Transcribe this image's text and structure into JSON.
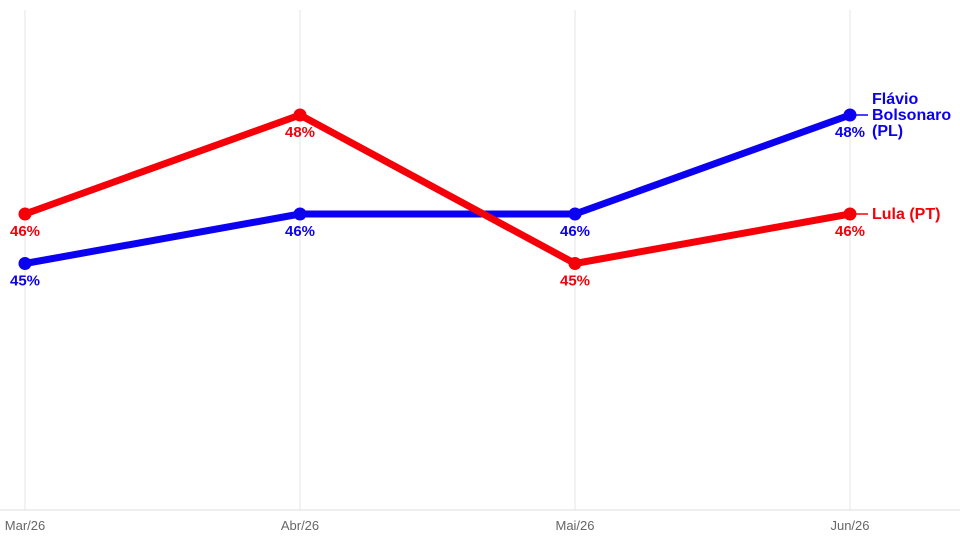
{
  "chart_data": {
    "type": "line",
    "categories": [
      "Mar/26",
      "Abr/26",
      "Mai/26",
      "Jun/26"
    ],
    "series": [
      {
        "name": "Flávio Bolsonaro (PL)",
        "name_lines": [
          "Flávio",
          "Bolsonaro",
          "(PL)"
        ],
        "values": [
          45,
          46,
          46,
          48
        ],
        "labels": [
          "45%",
          "46%",
          "46%",
          "48%"
        ],
        "color": "#0b00f0"
      },
      {
        "name": "Lula (PT)",
        "name_lines": [
          "Lula (PT)"
        ],
        "values": [
          46,
          48,
          45,
          46
        ],
        "labels": [
          "46%",
          "48%",
          "45%",
          "46%"
        ],
        "color": "#f50008"
      }
    ],
    "grid": "vertical",
    "legend": "inline-right"
  }
}
